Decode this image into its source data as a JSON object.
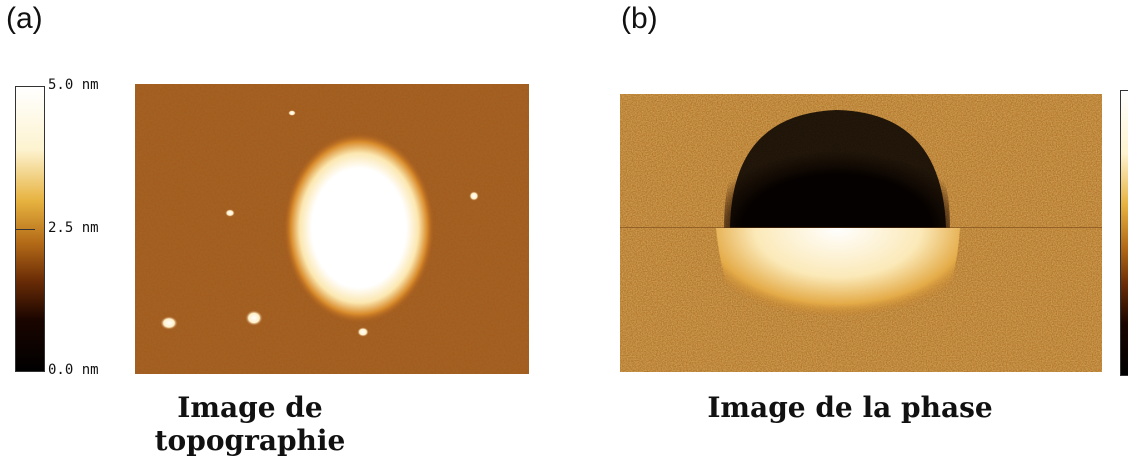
{
  "panels": [
    {
      "label": "(a)",
      "scale": {
        "top": "5.0 nm",
        "middle": "2.5 nm",
        "bottom": "0.0 nm"
      },
      "caption": "Image de topographie"
    },
    {
      "label": "(b)",
      "caption": "Image de la phase"
    }
  ],
  "colors": {
    "afm_dark": "#000000",
    "afm_brown": "#a5571c",
    "afm_gold": "#e7b340",
    "afm_white": "#ffffff"
  }
}
